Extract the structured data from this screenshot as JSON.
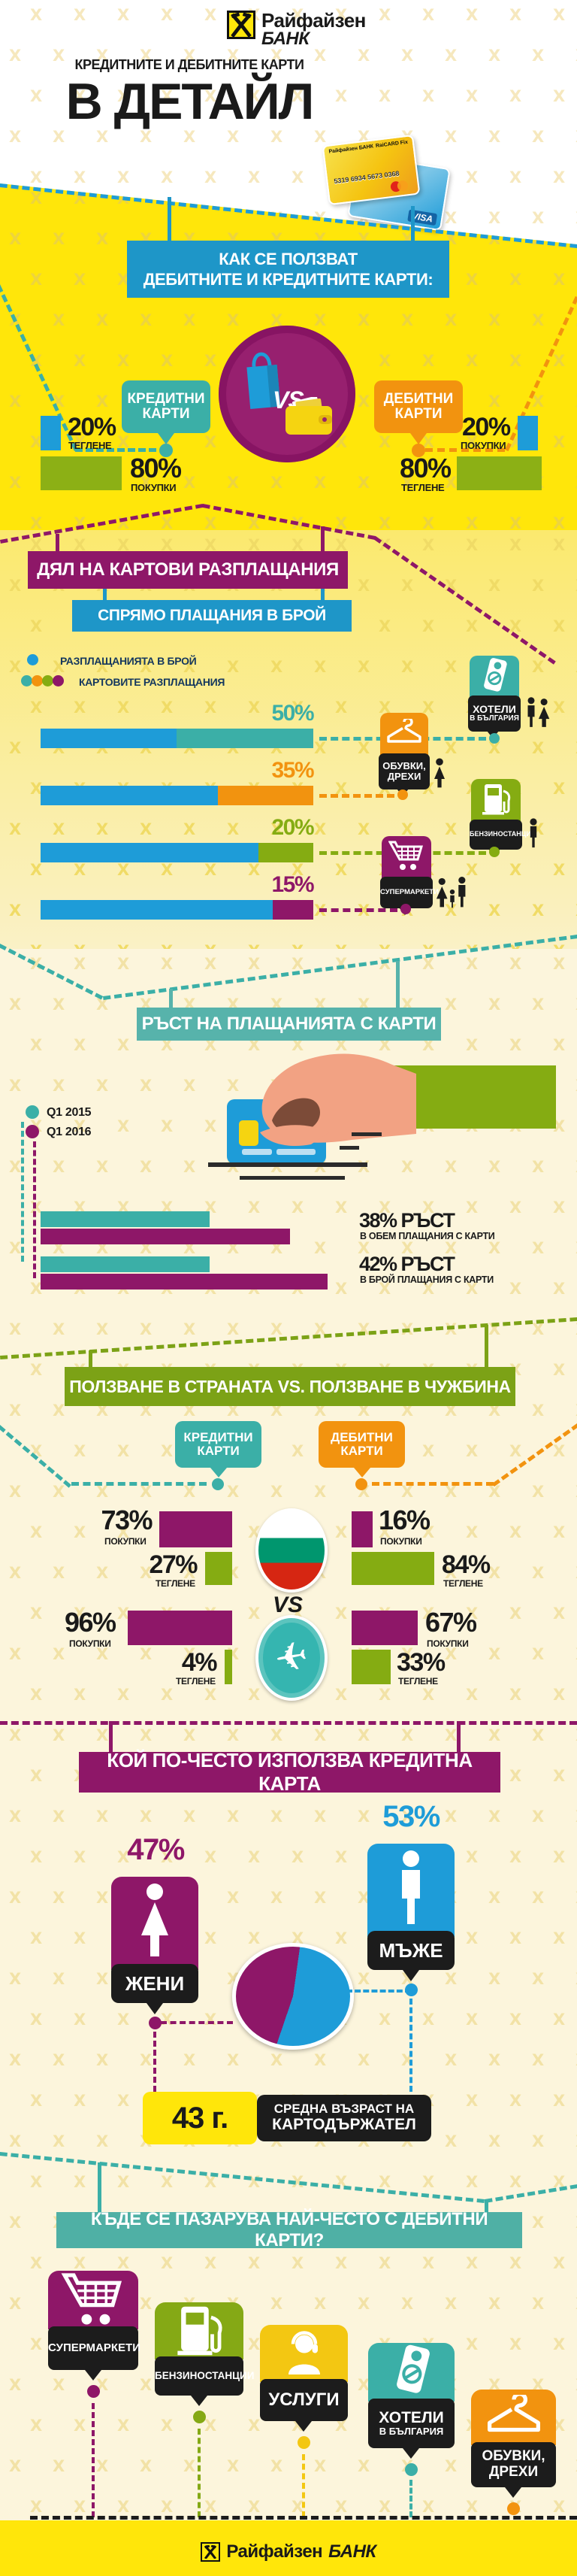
{
  "brand": {
    "logo_line1": "Райфайзен",
    "logo_line2": "БАНК"
  },
  "header": {
    "subtitle": "КРЕДИТНИТЕ И ДЕБИТНИТЕ КАРТИ",
    "title": "В ДЕТАЙЛ"
  },
  "cards_art": {
    "issuer": "Райфайзен БАНК",
    "product": "RaiCARD Fix",
    "number": "5319 6934 5673 0368",
    "visa": "VISA"
  },
  "s1": {
    "header_line1": "КАК СЕ ПОЛЗВАТ",
    "header_line2": "ДЕБИТНИТЕ И КРЕДИТНИТЕ КАРТИ:",
    "credit_label_line1": "КРЕДИТНИ",
    "credit_label_line2": "КАРТИ",
    "debit_label_line1": "ДЕБИТНИ",
    "debit_label_line2": "КАРТИ",
    "vs": "VS",
    "credit": {
      "stat1_pct": "20%",
      "stat1_label": "ТЕГЛЕНЕ",
      "stat2_pct": "80%",
      "stat2_label": "ПОКУПКИ"
    },
    "debit": {
      "stat1_pct": "20%",
      "stat1_label": "ПОКУПКИ",
      "stat2_pct": "80%",
      "stat2_label": "ТЕГЛЕНЕ"
    }
  },
  "s2": {
    "header_line1": "ДЯЛ НА КАРТОВИ РАЗПЛАЩАНИЯ",
    "header_line2": "СПРЯМО ПЛАЩАНИЯ В БРОЙ",
    "legend_cash": "РАЗПЛАЩАНИЯТА В БРОЙ",
    "legend_card": "КАРТОВИТЕ РАЗПЛАЩАНИЯ",
    "rows": [
      {
        "pct": "50%",
        "label_line1": "ХОТЕЛИ",
        "label_line2": "В БЪЛГАРИЯ"
      },
      {
        "pct": "35%",
        "label_line1": "ОБУВКИ,",
        "label_line2": "ДРЕХИ"
      },
      {
        "pct": "20%",
        "label_line1": "БЕНЗИНОСТАНЦИИ",
        "label_line2": ""
      },
      {
        "pct": "15%",
        "label_line1": "СУПЕРМАРКЕТИ",
        "label_line2": ""
      }
    ]
  },
  "s3": {
    "header": "РЪСТ НА ПЛАЩАНИЯТА С КАРТИ",
    "legend": [
      {
        "label": "Q1 2015"
      },
      {
        "label": "Q1 2016"
      }
    ],
    "stat1_value": "38% РЪСТ",
    "stat1_caption": "В ОБЕМ ПЛАЩАНИЯ С КАРТИ",
    "stat2_value": "42% РЪСТ",
    "stat2_caption": "В БРОЙ ПЛАЩАНИЯ С КАРТИ"
  },
  "s4": {
    "header": "ПОЛЗВАНЕ В СТРАНАТА VS. ПОЛЗВАНЕ В ЧУЖБИНА",
    "credit_label_line1": "КРЕДИТНИ",
    "credit_label_line2": "КАРТИ",
    "debit_label_line1": "ДЕБИТНИ",
    "debit_label_line2": "КАРТИ",
    "vs": "VS",
    "domestic": {
      "credit_pokupki": "73%",
      "credit_pokupki_label": "ПОКУПКИ",
      "credit_teglene": "27%",
      "credit_teglene_label": "ТЕГЛЕНЕ",
      "debit_pokupki": "16%",
      "debit_pokupki_label": "ПОКУПКИ",
      "debit_teglene": "84%",
      "debit_teglene_label": "ТЕГЛЕНЕ"
    },
    "abroad": {
      "credit_pokupki": "96%",
      "credit_pokupki_label": "ПОКУПКИ",
      "credit_teglene": "4%",
      "credit_teglene_label": "ТЕГЛЕНЕ",
      "debit_pokupki": "67%",
      "debit_pokupki_label": "ПОКУПКИ",
      "debit_teglene": "33%",
      "debit_teglene_label": "ТЕГЛЕНЕ"
    }
  },
  "s5": {
    "header": "КОЙ ПО-ЧЕСТО ИЗПОЛЗВА КРЕДИТНА КАРТА",
    "women_pct": "47%",
    "women_label": "ЖЕНИ",
    "men_pct": "53%",
    "men_label": "МЪЖЕ",
    "age_value": "43 г.",
    "age_caption_line1": "СРЕДНА ВЪЗРАСТ НА",
    "age_caption_line2": "КАРТОДЪРЖАТЕЛ"
  },
  "s6": {
    "header": "КЪДЕ СЕ ПАЗАРУВА НАЙ-ЧЕСТО С ДЕБИТНИ КАРТИ?",
    "items": [
      {
        "label_line1": "СУПЕРМАРКЕТИ",
        "label_line2": ""
      },
      {
        "label_line1": "БЕНЗИНОСТАНЦИИ",
        "label_line2": ""
      },
      {
        "label_line1": "УСЛУГИ",
        "label_line2": ""
      },
      {
        "label_line1": "ХОТЕЛИ",
        "label_line2": "В БЪЛГАРИЯ"
      },
      {
        "label_line1": "ОБУВКИ,",
        "label_line2": "ДРЕХИ"
      }
    ]
  },
  "footer": {
    "logo_line1": "Райфайзен",
    "logo_line2": "БАНК"
  },
  "colors": {
    "brand_yellow": "#FFE60A",
    "mid_yellow": "#FBE96E",
    "pale_yellow": "#FAF1C6",
    "cream": "#FCF5DC",
    "teal": "#3BAFA7",
    "teal_header": "#57B3AB",
    "blue": "#1E9CD8",
    "orange": "#F2930F",
    "purple": "#8E1768",
    "green": "#85AC12",
    "black_box": "#1C1C1C",
    "skin": "#F2A283"
  },
  "chart_data": [
    {
      "type": "pie",
      "title": "КАК СЕ ПОЛЗВАТ ДЕБИТНИТЕ И КРЕДИТНИТЕ КАРТИ",
      "series": [
        {
          "name": "КРЕДИТНИ КАРТИ",
          "labels": [
            "ТЕГЛЕНЕ",
            "ПОКУПКИ"
          ],
          "values": [
            20,
            80
          ]
        },
        {
          "name": "ДЕБИТНИ КАРТИ",
          "labels": [
            "ПОКУПКИ",
            "ТЕГЛЕНЕ"
          ],
          "values": [
            20,
            80
          ]
        }
      ]
    },
    {
      "type": "bar",
      "title": "ДЯЛ НА КАРТОВИ РАЗПЛАЩАНИЯ СПРЯМО ПЛАЩАНИЯ В БРОЙ",
      "legend": [
        "РАЗПЛАЩАНИЯТА В БРОЙ",
        "КАРТОВИТЕ РАЗПЛАЩАНИЯ"
      ],
      "categories": [
        "ХОТЕЛИ В БЪЛГАРИЯ",
        "ОБУВКИ, ДРЕХИ",
        "БЕНЗИНОСТАНЦИИ",
        "СУПЕРМАРКЕТИ"
      ],
      "values": [
        50,
        35,
        20,
        15
      ],
      "unit": "% картови разплащания"
    },
    {
      "type": "bar",
      "title": "РЪСТ НА ПЛАЩАНИЯТА С КАРТИ",
      "categories": [
        "В ОБЕМ ПЛАЩАНИЯ С КАРТИ",
        "В БРОЙ ПЛАЩАНИЯ С КАРТИ"
      ],
      "series": [
        {
          "name": "Q1 2015",
          "growth": [
            0,
            0
          ]
        },
        {
          "name": "Q1 2016",
          "growth": [
            38,
            42
          ]
        }
      ],
      "annotations": [
        "38% РЪСТ В ОБЕМ ПЛАЩАНИЯ С КАРТИ",
        "42% РЪСТ В БРОЙ ПЛАЩАНИЯ С КАРТИ"
      ]
    },
    {
      "type": "bar",
      "title": "ПОЛЗВАНЕ В СТРАНАТА VS. ПОЛЗВАНЕ В ЧУЖБИНА",
      "groups": [
        {
          "group": "В СТРАНАТА",
          "series": [
            {
              "name": "КРЕДИТНИ КАРТИ",
              "ПОКУПКИ": 73,
              "ТЕГЛЕНЕ": 27
            },
            {
              "name": "ДЕБИТНИ КАРТИ",
              "ПОКУПКИ": 16,
              "ТЕГЛЕНЕ": 84
            }
          ]
        },
        {
          "group": "В ЧУЖБИНА",
          "series": [
            {
              "name": "КРЕДИТНИ КАРТИ",
              "ПОКУПКИ": 96,
              "ТЕГЛЕНЕ": 4
            },
            {
              "name": "ДЕБИТНИ КАРТИ",
              "ПОКУПКИ": 67,
              "ТЕГЛЕНЕ": 33
            }
          ]
        }
      ]
    },
    {
      "type": "pie",
      "title": "КОЙ ПО-ЧЕСТО ИЗПОЛЗВА КРЕДИТНА КАРТА",
      "categories": [
        "ЖЕНИ",
        "МЪЖЕ"
      ],
      "values": [
        47,
        53
      ],
      "note": "СРЕДНА ВЪЗРАСТ НА КАРТОДЪРЖАТЕЛ: 43 г."
    },
    {
      "type": "table",
      "title": "КЪДЕ СЕ ПАЗАРУВА НАЙ-ЧЕСТО С ДЕБИТНИ КАРТИ?",
      "categories": [
        "СУПЕРМАРКЕТИ",
        "БЕНЗИНОСТАНЦИИ",
        "УСЛУГИ",
        "ХОТЕЛИ В БЪЛГАРИЯ",
        "ОБУВКИ, ДРЕХИ"
      ]
    }
  ]
}
